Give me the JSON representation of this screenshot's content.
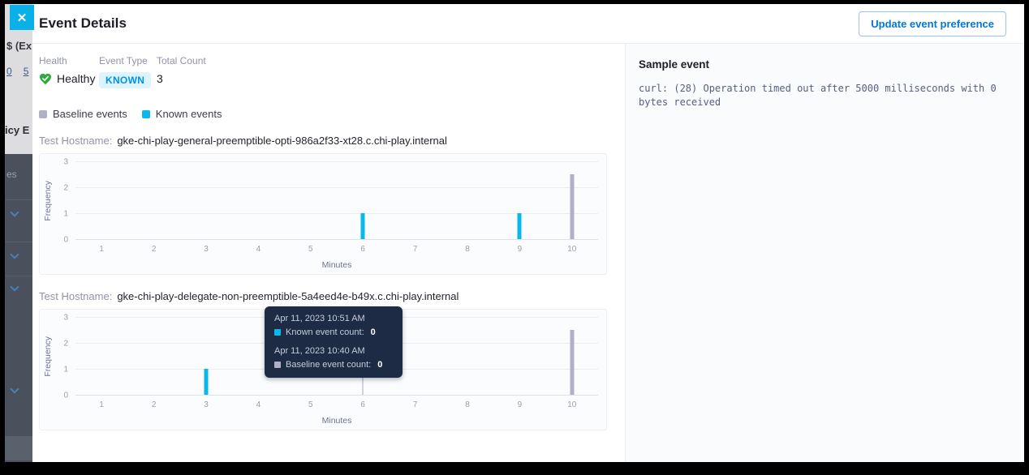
{
  "close_button": {
    "label": "✕"
  },
  "header": {
    "title": "Event Details",
    "update_button_label": "Update event preference"
  },
  "summary": {
    "health_label": "Health",
    "health_value": "Healthy",
    "event_type_label": "Event Type",
    "event_type_value": "KNOWN",
    "total_count_label": "Total Count",
    "total_count_value": "3"
  },
  "legend": [
    {
      "label": "Baseline events",
      "color": "#b0b1c7"
    },
    {
      "label": "Known events",
      "color": "#0bb8ec"
    }
  ],
  "chart_data": [
    {
      "type": "bar",
      "hostname_label": "Test Hostname:",
      "hostname": "gke-chi-play-general-preemptible-opti-986a2f33-xt28.c.chi-play.internal",
      "xlabel": "Minutes",
      "ylabel": "Frequency",
      "x_ticks": [
        1,
        2,
        3,
        4,
        5,
        6,
        7,
        8,
        9,
        10
      ],
      "y_ticks": [
        0,
        1,
        2,
        3
      ],
      "ylim": [
        0,
        3
      ],
      "grid": true,
      "series": [
        {
          "name": "Known events",
          "color": "#0bb8ec",
          "points": [
            {
              "x": 6,
              "y": 1
            },
            {
              "x": 9,
              "y": 1
            }
          ]
        },
        {
          "name": "Baseline events",
          "color": "#b0b1c7",
          "points": [
            {
              "x": 10,
              "y": 2.5
            }
          ]
        }
      ]
    },
    {
      "type": "bar",
      "hostname_label": "Test Hostname:",
      "hostname": "gke-chi-play-delegate-non-preemptible-5a4eed4e-b49x.c.chi-play.internal",
      "xlabel": "Minutes",
      "ylabel": "Frequency",
      "x_ticks": [
        1,
        2,
        3,
        4,
        5,
        6,
        7,
        8,
        9,
        10
      ],
      "y_ticks": [
        0,
        1,
        2,
        3
      ],
      "ylim": [
        0,
        3
      ],
      "grid": true,
      "series": [
        {
          "name": "Known events",
          "color": "#0bb8ec",
          "points": [
            {
              "x": 3,
              "y": 1
            }
          ]
        },
        {
          "name": "Baseline events",
          "color": "#b0b1c7",
          "points": [
            {
              "x": 10,
              "y": 2.5
            }
          ]
        }
      ],
      "tooltip": {
        "crosshair_x": 6,
        "entries": [
          {
            "timestamp": "Apr 11, 2023 10:51 AM",
            "label": "Known event count:",
            "value": "0",
            "color": "#0bb8ec"
          },
          {
            "timestamp": "Apr 11, 2023 10:40 AM",
            "label": "Baseline event count:",
            "value": "0",
            "color": "#b0b1c7"
          }
        ]
      }
    }
  ],
  "sample_event": {
    "title": "Sample event",
    "text": "curl: (28) Operation timed out after 5000 milliseconds with 0 bytes received"
  },
  "backdrop": {
    "fragments": {
      "expression": "$ (Ex",
      "link_a": "0",
      "link_b": "5",
      "policy": "icy E",
      "es": "es"
    }
  }
}
